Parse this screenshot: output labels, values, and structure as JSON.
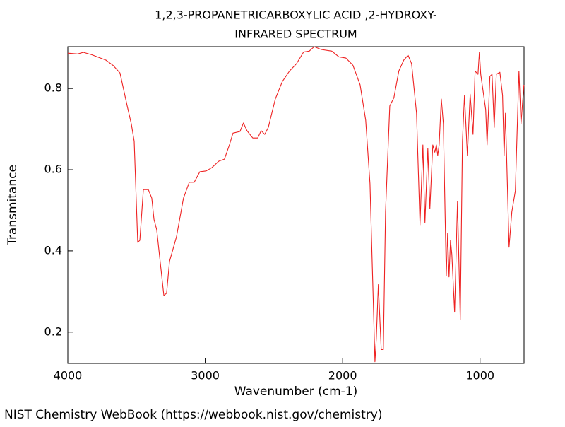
{
  "chart_data": {
    "type": "line",
    "title": "1,2,3-PROPANETRICARBOXYLIC ACID ,2-HYDROXY-",
    "subtitle": "INFRARED SPECTRUM",
    "x_label": "Wavenumber (cm-1)",
    "y_label": "Transmitance",
    "footer": "NIST Chemistry WebBook (https://webbook.nist.gov/chemistry)",
    "xlim": [
      4000,
      680
    ],
    "ylim": [
      0.123,
      0.903
    ],
    "xticks": [
      4000,
      3000,
      2000,
      1000
    ],
    "yticks": [
      0.2,
      0.4,
      0.6,
      0.8
    ],
    "series": [
      {
        "color": "#ee2222",
        "x": [
          4000,
          3928,
          3887,
          3825,
          3723,
          3671,
          3620,
          3568,
          3538,
          3517,
          3491,
          3476,
          3450,
          3414,
          3389,
          3373,
          3353,
          3301,
          3281,
          3260,
          3209,
          3158,
          3116,
          3080,
          3039,
          2993,
          2952,
          2901,
          2860,
          2824,
          2798,
          2747,
          2722,
          2696,
          2654,
          2618,
          2593,
          2567,
          2541,
          2490,
          2439,
          2387,
          2336,
          2284,
          2243,
          2207,
          2156,
          2079,
          2027,
          1976,
          1925,
          1873,
          1832,
          1801,
          1781,
          1765,
          1755,
          1740,
          1719,
          1704,
          1688,
          1657,
          1627,
          1591,
          1555,
          1524,
          1498,
          1462,
          1437,
          1416,
          1401,
          1380,
          1365,
          1344,
          1329,
          1318,
          1308,
          1298,
          1282,
          1267,
          1246,
          1236,
          1226,
          1215,
          1205,
          1185,
          1164,
          1144,
          1128,
          1113,
          1092,
          1072,
          1051,
          1036,
          1015,
          1005,
          995,
          959,
          949,
          928,
          913,
          897,
          882,
          856,
          836,
          825,
          815,
          789,
          769,
          743,
          717,
          702,
          681
        ],
        "values": [
          0.887,
          0.885,
          0.889,
          0.883,
          0.87,
          0.857,
          0.838,
          0.757,
          0.713,
          0.67,
          0.421,
          0.426,
          0.551,
          0.551,
          0.53,
          0.478,
          0.452,
          0.29,
          0.296,
          0.374,
          0.435,
          0.53,
          0.569,
          0.569,
          0.595,
          0.597,
          0.605,
          0.621,
          0.626,
          0.661,
          0.69,
          0.694,
          0.715,
          0.696,
          0.678,
          0.678,
          0.696,
          0.687,
          0.704,
          0.774,
          0.817,
          0.843,
          0.861,
          0.89,
          0.892,
          0.903,
          0.896,
          0.892,
          0.878,
          0.875,
          0.857,
          0.809,
          0.722,
          0.565,
          0.322,
          0.127,
          0.183,
          0.317,
          0.157,
          0.157,
          0.496,
          0.757,
          0.777,
          0.843,
          0.87,
          0.882,
          0.861,
          0.739,
          0.464,
          0.661,
          0.47,
          0.652,
          0.504,
          0.661,
          0.643,
          0.661,
          0.635,
          0.661,
          0.774,
          0.713,
          0.339,
          0.443,
          0.336,
          0.426,
          0.391,
          0.249,
          0.522,
          0.231,
          0.67,
          0.783,
          0.635,
          0.786,
          0.687,
          0.843,
          0.835,
          0.89,
          0.835,
          0.748,
          0.661,
          0.83,
          0.835,
          0.704,
          0.835,
          0.84,
          0.783,
          0.635,
          0.739,
          0.409,
          0.496,
          0.548,
          0.843,
          0.713,
          0.809
        ]
      }
    ]
  }
}
